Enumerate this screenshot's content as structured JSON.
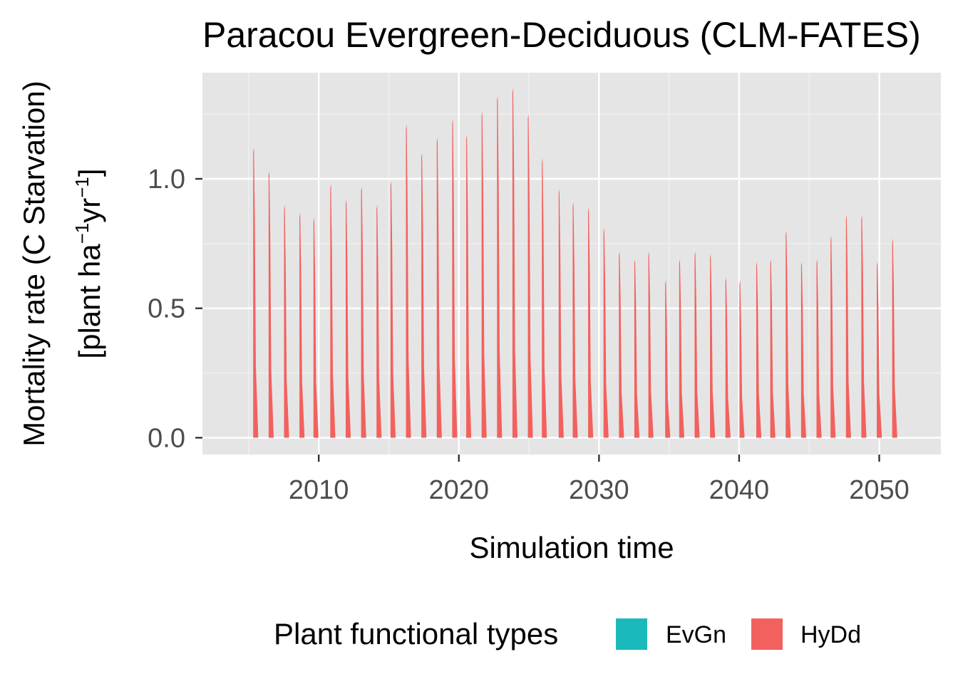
{
  "chart_data": {
    "type": "area",
    "title": "Paracou Evergreen-Deciduous (CLM-FATES)",
    "xlabel": "Simulation time",
    "ylabel_line1": "Mortality rate (C Starvation)",
    "ylabel_line2_text": "[plant ha",
    "ylabel_line2_exp1": "−1",
    "ylabel_line2_mid": "yr",
    "ylabel_line2_exp2": "−1",
    "ylabel_line2_end": "]",
    "xlim": [
      2001.7,
      2054.4
    ],
    "ylim": [
      -0.065,
      1.41
    ],
    "x_ticks": [
      2010,
      2020,
      2030,
      2040,
      2050
    ],
    "x_tick_labels": [
      "2010",
      "2020",
      "2030",
      "2040",
      "2050"
    ],
    "y_ticks": [
      0.0,
      0.5,
      1.0
    ],
    "y_tick_labels": [
      "0.0",
      "0.5",
      "1.0"
    ],
    "grid": true,
    "legend": {
      "title": "Plant functional types",
      "position": "bottom",
      "entries": [
        {
          "name": "EvGn",
          "color": "#1ABABC"
        },
        {
          "name": "HyDd",
          "color": "#F2615E"
        }
      ]
    },
    "series": [
      {
        "name": "HyDd",
        "color": "#F2615E",
        "peaks": [
          [
            2005.4,
            1.12
          ],
          [
            2006.5,
            1.03
          ],
          [
            2007.6,
            0.9
          ],
          [
            2008.7,
            0.87
          ],
          [
            2009.7,
            0.85
          ],
          [
            2010.9,
            0.98
          ],
          [
            2012.0,
            0.92
          ],
          [
            2013.1,
            0.97
          ],
          [
            2014.2,
            0.9
          ],
          [
            2015.2,
            0.99
          ],
          [
            2016.3,
            1.21
          ],
          [
            2017.4,
            1.1
          ],
          [
            2018.5,
            1.16
          ],
          [
            2019.6,
            1.23
          ],
          [
            2020.6,
            1.17
          ],
          [
            2021.7,
            1.26
          ],
          [
            2022.8,
            1.32
          ],
          [
            2023.9,
            1.35
          ],
          [
            2025.0,
            1.25
          ],
          [
            2026.0,
            1.08
          ],
          [
            2027.2,
            0.96
          ],
          [
            2028.2,
            0.91
          ],
          [
            2029.3,
            0.89
          ],
          [
            2030.4,
            0.81
          ],
          [
            2031.5,
            0.72
          ],
          [
            2032.6,
            0.69
          ],
          [
            2033.6,
            0.72
          ],
          [
            2034.8,
            0.61
          ],
          [
            2035.8,
            0.69
          ],
          [
            2036.9,
            0.72
          ],
          [
            2038.0,
            0.71
          ],
          [
            2039.1,
            0.62
          ],
          [
            2040.1,
            0.61
          ],
          [
            2041.3,
            0.68
          ],
          [
            2042.3,
            0.69
          ],
          [
            2043.4,
            0.8
          ],
          [
            2044.5,
            0.68
          ],
          [
            2045.6,
            0.69
          ],
          [
            2046.6,
            0.78
          ],
          [
            2047.7,
            0.86
          ],
          [
            2048.8,
            0.86
          ],
          [
            2049.9,
            0.68
          ],
          [
            2051.0,
            0.77
          ]
        ]
      }
    ]
  }
}
